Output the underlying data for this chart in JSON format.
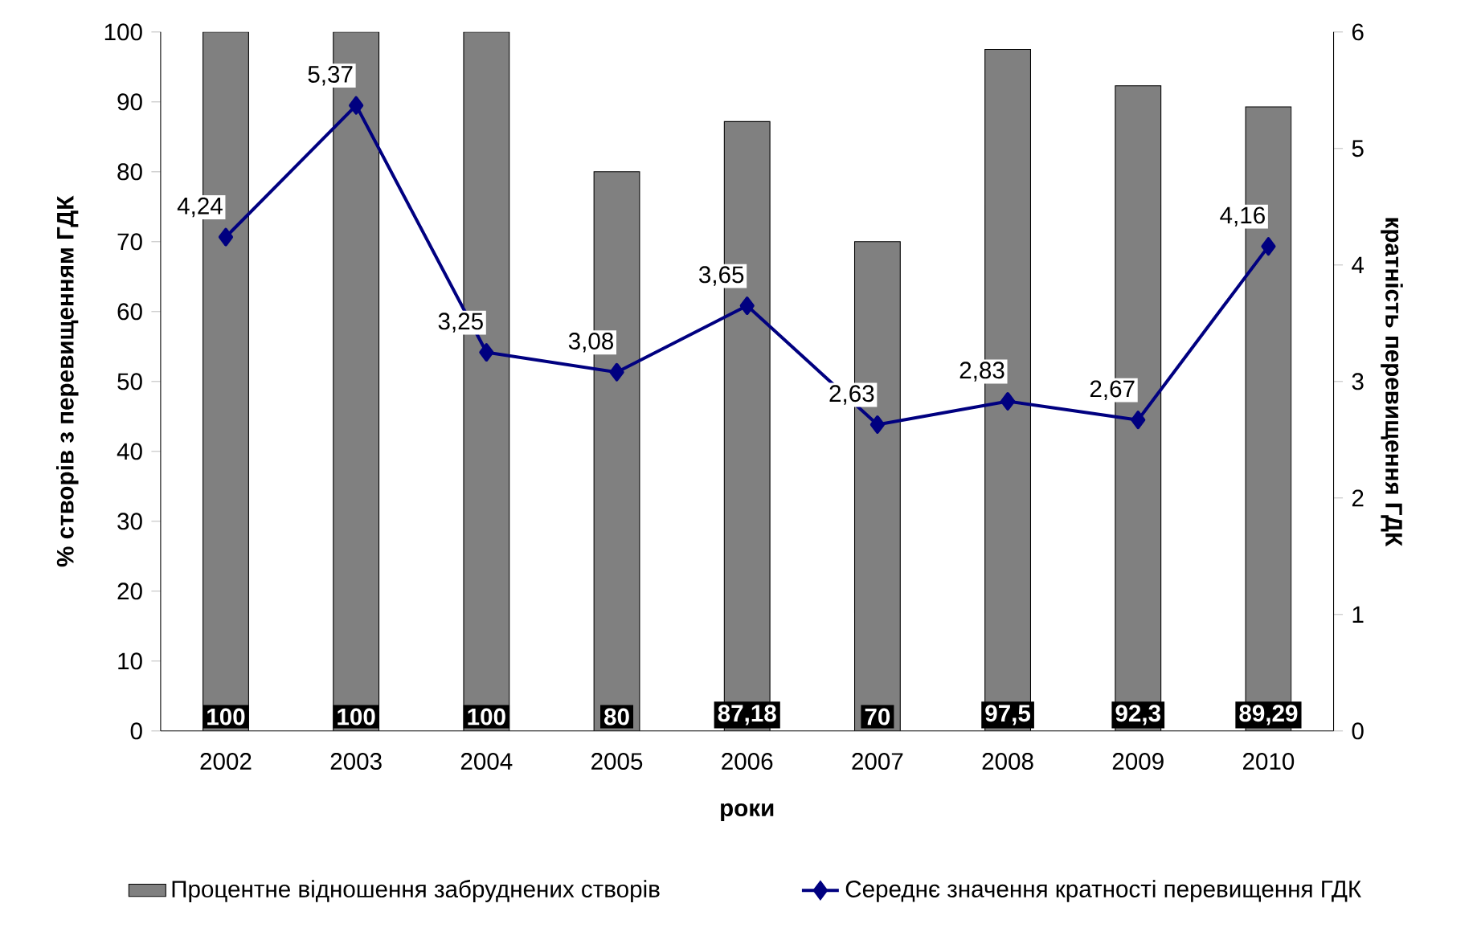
{
  "chart_data": {
    "type": "bar",
    "xlabel": "роки",
    "ylabel": "% створів з перевищенням ГДК",
    "y2label": "кратність перевищення ГДК",
    "categories": [
      "2002",
      "2003",
      "2004",
      "2005",
      "2006",
      "2007",
      "2008",
      "2009",
      "2010"
    ],
    "series": [
      {
        "name": "Процентне відношення забруднених створів",
        "color": "#808080",
        "values": [
          100,
          100,
          100,
          80,
          87.18,
          70,
          97.5,
          92.3,
          89.29
        ],
        "value_labels": [
          "100",
          "100",
          "100",
          "80",
          "87,18",
          "70",
          "97,5",
          "92,3",
          "89,29"
        ]
      },
      {
        "name": "Середнє значення кратності перевищення ГДК",
        "type": "line",
        "axis": "y2",
        "color": "#000080",
        "marker": "diamond",
        "values": [
          4.24,
          5.37,
          3.25,
          3.08,
          3.65,
          2.63,
          2.83,
          2.67,
          4.16
        ],
        "value_labels": [
          "4,24",
          "5,37",
          "3,25",
          "3,08",
          "3,65",
          "2,63",
          "2,83",
          "2,67",
          "4,16"
        ]
      }
    ],
    "ylim": [
      0,
      100
    ],
    "yticks": [
      0,
      10,
      20,
      30,
      40,
      50,
      60,
      70,
      80,
      90,
      100
    ],
    "y2lim": [
      0,
      6
    ],
    "y2ticks": [
      0,
      1,
      2,
      3,
      4,
      5,
      6
    ],
    "legend": "bottom",
    "grid": false
  }
}
